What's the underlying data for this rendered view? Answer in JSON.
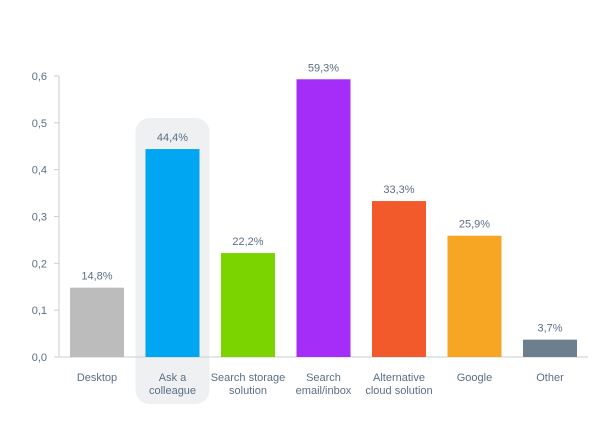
{
  "chart_data": {
    "type": "bar",
    "categories": [
      "Desktop",
      "Ask a colleague",
      "Search storage solution",
      "Search email/inbox",
      "Alternative cloud solution",
      "Google",
      "Other"
    ],
    "category_lines": [
      [
        "Desktop"
      ],
      [
        "Ask a",
        "colleague"
      ],
      [
        "Search storage",
        "solution"
      ],
      [
        "Search",
        "email/inbox"
      ],
      [
        "Alternative",
        "cloud solution"
      ],
      [
        "Google"
      ],
      [
        "Other"
      ]
    ],
    "values": [
      0.148,
      0.444,
      0.222,
      0.593,
      0.333,
      0.259,
      0.037
    ],
    "data_labels": [
      "14,8%",
      "44,4%",
      "22,2%",
      "59,3%",
      "33,3%",
      "25,9%",
      "3,7%"
    ],
    "colors": [
      "#bcbcbc",
      "#00a6f2",
      "#7bd400",
      "#a42df7",
      "#f25a2c",
      "#f6a623",
      "#6d7f8d"
    ],
    "highlight_index": 1,
    "highlight_color": "#eef0f2",
    "ylim": [
      0,
      0.6
    ],
    "yticks": [
      0,
      0.1,
      0.2,
      0.3,
      0.4,
      0.5,
      0.6
    ],
    "ytick_labels": [
      "0,0",
      "0,1",
      "0,2",
      "0,3",
      "0,4",
      "0,5",
      "0,6"
    ],
    "title": "",
    "xlabel": "",
    "ylabel": "",
    "grid": false,
    "axis_color": "#c9cfd6",
    "text_color": "#5a6f86"
  }
}
